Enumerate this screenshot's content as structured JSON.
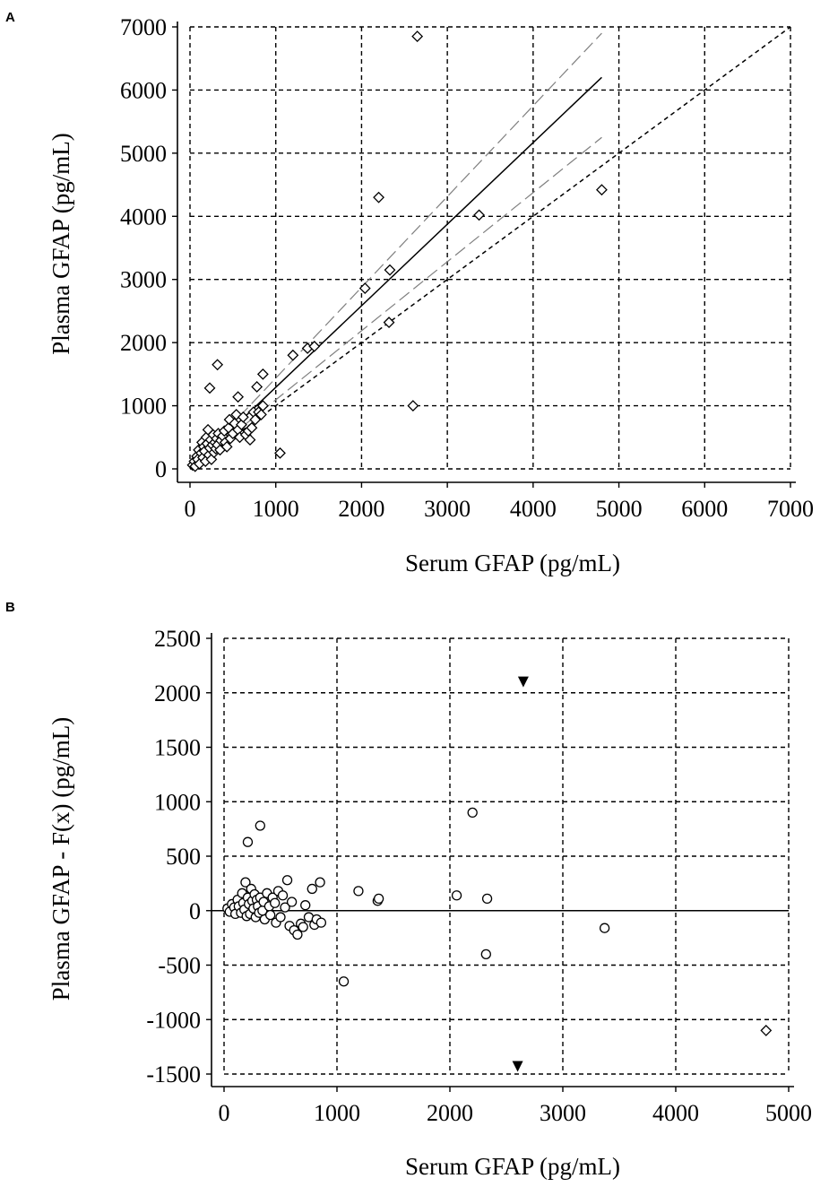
{
  "chart_data": [
    {
      "panel": "A",
      "type": "scatter",
      "xlabel": "Serum GFAP (pg/mL)",
      "ylabel": "Plasma GFAP (pg/mL)",
      "xlim": [
        0,
        7000
      ],
      "ylim": [
        0,
        7000
      ],
      "xticks": [
        0,
        1000,
        2000,
        3000,
        4000,
        5000,
        6000,
        7000
      ],
      "yticks": [
        0,
        1000,
        2000,
        3000,
        4000,
        5000,
        6000,
        7000
      ],
      "grid": true,
      "marker": "open-diamond",
      "points": [
        [
          30,
          60
        ],
        [
          50,
          120
        ],
        [
          60,
          40
        ],
        [
          80,
          200
        ],
        [
          90,
          150
        ],
        [
          100,
          300
        ],
        [
          110,
          80
        ],
        [
          130,
          250
        ],
        [
          140,
          420
        ],
        [
          150,
          180
        ],
        [
          160,
          350
        ],
        [
          170,
          280
        ],
        [
          180,
          120
        ],
        [
          190,
          500
        ],
        [
          200,
          400
        ],
        [
          210,
          620
        ],
        [
          220,
          220
        ],
        [
          230,
          330
        ],
        [
          240,
          460
        ],
        [
          250,
          150
        ],
        [
          260,
          380
        ],
        [
          270,
          540
        ],
        [
          280,
          260
        ],
        [
          290,
          420
        ],
        [
          300,
          320
        ],
        [
          310,
          480
        ],
        [
          320,
          380
        ],
        [
          330,
          560
        ],
        [
          350,
          300
        ],
        [
          360,
          450
        ],
        [
          380,
          520
        ],
        [
          400,
          600
        ],
        [
          410,
          420
        ],
        [
          430,
          350
        ],
        [
          450,
          650
        ],
        [
          460,
          780
        ],
        [
          470,
          480
        ],
        [
          500,
          560
        ],
        [
          520,
          720
        ],
        [
          540,
          860
        ],
        [
          560,
          620
        ],
        [
          580,
          500
        ],
        [
          600,
          700
        ],
        [
          620,
          820
        ],
        [
          650,
          540
        ],
        [
          680,
          600
        ],
        [
          700,
          460
        ],
        [
          720,
          650
        ],
        [
          740,
          900
        ],
        [
          760,
          780
        ],
        [
          800,
          900
        ],
        [
          830,
          860
        ],
        [
          850,
          1000
        ],
        [
          230,
          1280
        ],
        [
          320,
          1650
        ],
        [
          560,
          1140
        ],
        [
          780,
          1300
        ],
        [
          850,
          1500
        ],
        [
          1050,
          250
        ],
        [
          1200,
          1800
        ],
        [
          1370,
          1910
        ],
        [
          1450,
          1940
        ],
        [
          2040,
          2860
        ],
        [
          2200,
          4300
        ],
        [
          2330,
          3150
        ],
        [
          2320,
          2320
        ],
        [
          2600,
          1000
        ],
        [
          2650,
          6850
        ],
        [
          3370,
          4020
        ],
        [
          4800,
          4420
        ]
      ],
      "lines": [
        {
          "name": "",
          "style": "solid",
          "from": [
            0,
            0
          ],
          "to": [
            4800,
            6200
          ]
        },
        {
          "name": "",
          "style": "long-dash-gray",
          "from": [
            0,
            0
          ],
          "to": [
            4800,
            6900
          ]
        },
        {
          "name": "",
          "style": "long-dash-gray",
          "from": [
            0,
            0
          ],
          "to": [
            4800,
            5250
          ]
        },
        {
          "name": "",
          "style": "short-dash",
          "from": [
            0,
            0
          ],
          "to": [
            7000,
            7000
          ]
        }
      ]
    },
    {
      "panel": "B",
      "type": "scatter",
      "xlabel": "Serum GFAP (pg/mL)",
      "ylabel": "Plasma GFAP - F(x) (pg/mL)",
      "xlim": [
        0,
        5000
      ],
      "ylim": [
        -1500,
        2500
      ],
      "xticks": [
        0,
        1000,
        2000,
        3000,
        4000,
        5000
      ],
      "yticks": [
        -1500,
        -1000,
        -500,
        0,
        500,
        1000,
        1500,
        2000,
        2500
      ],
      "grid": true,
      "marker": "open-circle",
      "zero_line": true,
      "points": [
        [
          30,
          20
        ],
        [
          50,
          -10
        ],
        [
          70,
          60
        ],
        [
          90,
          30
        ],
        [
          100,
          -30
        ],
        [
          120,
          100
        ],
        [
          130,
          40
        ],
        [
          150,
          -20
        ],
        [
          160,
          160
        ],
        [
          170,
          70
        ],
        [
          180,
          10
        ],
        [
          190,
          260
        ],
        [
          200,
          -50
        ],
        [
          210,
          120
        ],
        [
          220,
          60
        ],
        [
          230,
          -30
        ],
        [
          240,
          200
        ],
        [
          250,
          90
        ],
        [
          260,
          20
        ],
        [
          270,
          150
        ],
        [
          280,
          -60
        ],
        [
          290,
          100
        ],
        [
          300,
          40
        ],
        [
          310,
          -20
        ],
        [
          320,
          120
        ],
        [
          340,
          0
        ],
        [
          350,
          80
        ],
        [
          360,
          -80
        ],
        [
          380,
          160
        ],
        [
          400,
          40
        ],
        [
          410,
          -40
        ],
        [
          430,
          120
        ],
        [
          450,
          70
        ],
        [
          460,
          -110
        ],
        [
          480,
          180
        ],
        [
          500,
          -60
        ],
        [
          520,
          140
        ],
        [
          540,
          30
        ],
        [
          560,
          280
        ],
        [
          580,
          -140
        ],
        [
          600,
          80
        ],
        [
          620,
          -180
        ],
        [
          650,
          -220
        ],
        [
          680,
          -120
        ],
        [
          700,
          -150
        ],
        [
          720,
          50
        ],
        [
          750,
          -60
        ],
        [
          780,
          200
        ],
        [
          800,
          -130
        ],
        [
          820,
          -80
        ],
        [
          850,
          260
        ],
        [
          860,
          -110
        ],
        [
          210,
          630
        ],
        [
          320,
          780
        ],
        [
          1060,
          -650
        ],
        [
          1190,
          180
        ],
        [
          1360,
          90
        ],
        [
          1370,
          110
        ],
        [
          2060,
          140
        ],
        [
          2200,
          900
        ],
        [
          2320,
          -400
        ],
        [
          2330,
          110
        ],
        [
          3370,
          -160
        ]
      ],
      "diamond_points": [
        [
          4800,
          -1100
        ]
      ],
      "offscale_markers": [
        {
          "x": 2650,
          "y": 2100,
          "direction": "up"
        },
        {
          "x": 2600,
          "y": -1430,
          "direction": "down"
        }
      ]
    }
  ],
  "panels": {
    "a": {
      "letter": "A",
      "xlabel": "Serum GFAP (pg/mL)",
      "ylabel": "Plasma GFAP (pg/mL)"
    },
    "b": {
      "letter": "B",
      "xlabel": "Serum GFAP (pg/mL)",
      "ylabel": "Plasma GFAP - F(x) (pg/mL)"
    }
  },
  "colors": {
    "ink": "#000000",
    "ci_line": "#7f7f7f",
    "background": "#ffffff"
  }
}
